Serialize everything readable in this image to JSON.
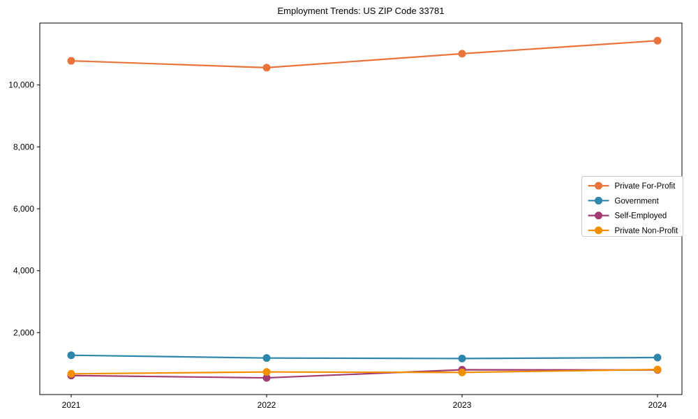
{
  "chart_data": {
    "type": "line",
    "title": "Employment Trends: US ZIP Code 33781",
    "categories": [
      "2021",
      "2022",
      "2023",
      "2024"
    ],
    "series": [
      {
        "name": "Private For-Profit",
        "color": "#E8743B",
        "values": [
          10780,
          10560,
          11010,
          11430
        ]
      },
      {
        "name": "Government",
        "color": "#2E86AB",
        "values": [
          1270,
          1180,
          1165,
          1195
        ]
      },
      {
        "name": "Self-Employed",
        "color": "#A23B72",
        "values": [
          615,
          540,
          800,
          795
        ]
      },
      {
        "name": "Private Non-Profit",
        "color": "#F18F01",
        "values": [
          670,
          730,
          715,
          810
        ]
      }
    ],
    "xlabel": "",
    "ylabel": "",
    "ylim": [
      0,
      12000
    ],
    "yticks": [
      2000,
      4000,
      6000,
      8000,
      10000
    ],
    "ytick_labels": [
      "2,000",
      "4,000",
      "6,000",
      "8,000",
      "10,000"
    ],
    "grid": false,
    "legend_position": "right-middle",
    "axis_color": "#000000",
    "legend_border_color": "#c9c9c9",
    "background_color": "#ffffff"
  }
}
